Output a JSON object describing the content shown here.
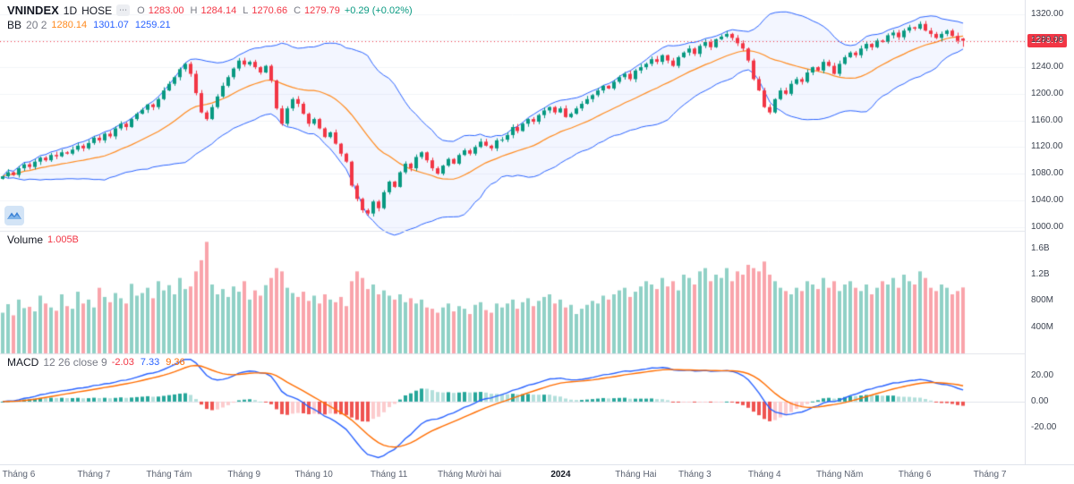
{
  "header": {
    "symbol": "VNINDEX",
    "interval": "1D",
    "exchange": "HOSE",
    "ohlc_items": [
      {
        "k": "O",
        "v": "1283.00"
      },
      {
        "k": "H",
        "v": "1284.14"
      },
      {
        "k": "L",
        "v": "1270.66"
      },
      {
        "k": "C",
        "v": "1279.79"
      }
    ],
    "value_color": "#f23645",
    "change": "+0.29 (+0.02%)",
    "change_color": "#089981"
  },
  "indicators": {
    "bb": {
      "name": "BB",
      "params": "20 2",
      "values": [
        {
          "v": "1280.14",
          "c": "#ff8a1e"
        },
        {
          "v": "1301.07",
          "c": "#2962ff"
        },
        {
          "v": "1259.21",
          "c": "#2962ff"
        }
      ]
    },
    "volume": {
      "name": "Volume",
      "value": "1.005B",
      "c": "#f23645"
    },
    "macd": {
      "name": "MACD",
      "params": "12 26 close 9",
      "values": [
        {
          "v": "-2.03",
          "c": "#f23645"
        },
        {
          "v": "7.33",
          "c": "#2962ff"
        },
        {
          "v": "9.36",
          "c": "#ff6d00"
        }
      ]
    }
  },
  "axes": {
    "price_ticks": [
      {
        "label": "1320.00",
        "v": 1320
      },
      {
        "label": "1280.00",
        "v": 1280
      },
      {
        "label": "1240.00",
        "v": 1240
      },
      {
        "label": "1200.00",
        "v": 1200
      },
      {
        "label": "1160.00",
        "v": 1160
      },
      {
        "label": "1120.00",
        "v": 1120
      },
      {
        "label": "1080.00",
        "v": 1080
      },
      {
        "label": "1040.00",
        "v": 1040
      },
      {
        "label": "1000.00",
        "v": 1000
      }
    ],
    "volume_ticks": [
      {
        "label": "1.6B",
        "v": 1600
      },
      {
        "label": "1.2B",
        "v": 1200
      },
      {
        "label": "800M",
        "v": 800
      },
      {
        "label": "400M",
        "v": 400
      }
    ],
    "macd_ticks": [
      {
        "label": "20.00",
        "v": 20
      },
      {
        "label": "0.00",
        "v": 0
      },
      {
        "label": "-20.00",
        "v": -20
      }
    ],
    "last_price_label": "1279.79"
  },
  "chart_data": {
    "type": "candlestick",
    "title": "VNINDEX 1D HOSE",
    "panes": [
      "price with bollinger(20,2)",
      "volume",
      "macd(12,26,9)"
    ],
    "price_range": [
      994,
      1341
    ],
    "volume_range_m": [
      0,
      1800
    ],
    "last_price": 1279.79,
    "open_first": 1072,
    "last_candle": {
      "o": 1283.0,
      "h": 1284.14,
      "l": 1270.66,
      "c": 1279.79
    },
    "closes": [
      1076,
      1082,
      1078,
      1088,
      1094,
      1090,
      1098,
      1104,
      1100,
      1108,
      1106,
      1112,
      1110,
      1116,
      1122,
      1118,
      1126,
      1134,
      1130,
      1140,
      1136,
      1148,
      1155,
      1150,
      1162,
      1170,
      1176,
      1184,
      1180,
      1192,
      1205,
      1215,
      1225,
      1237,
      1245,
      1230,
      1201,
      1172,
      1162,
      1180,
      1196,
      1212,
      1225,
      1238,
      1250,
      1244,
      1248,
      1240,
      1232,
      1242,
      1220,
      1178,
      1155,
      1178,
      1192,
      1185,
      1170,
      1155,
      1162,
      1148,
      1135,
      1142,
      1125,
      1110,
      1098,
      1062,
      1042,
      1025,
      1020,
      1038,
      1028,
      1052,
      1068,
      1060,
      1082,
      1095,
      1088,
      1105,
      1112,
      1100,
      1088,
      1080,
      1092,
      1102,
      1095,
      1108,
      1115,
      1110,
      1120,
      1128,
      1122,
      1118,
      1130,
      1131,
      1138,
      1150,
      1144,
      1155,
      1162,
      1158,
      1168,
      1175,
      1180,
      1172,
      1178,
      1165,
      1170,
      1178,
      1185,
      1192,
      1198,
      1205,
      1212,
      1208,
      1218,
      1225,
      1230,
      1222,
      1235,
      1240,
      1245,
      1252,
      1248,
      1258,
      1250,
      1242,
      1255,
      1262,
      1268,
      1260,
      1272,
      1278,
      1270,
      1282,
      1286,
      1290,
      1284,
      1276,
      1268,
      1250,
      1222,
      1205,
      1180,
      1172,
      1192,
      1205,
      1200,
      1215,
      1222,
      1218,
      1232,
      1240,
      1235,
      1248,
      1242,
      1230,
      1245,
      1255,
      1262,
      1258,
      1268,
      1275,
      1270,
      1280,
      1278,
      1288,
      1292,
      1285,
      1295,
      1300,
      1298,
      1305,
      1295,
      1290,
      1284,
      1290,
      1295,
      1287,
      1279.5,
      1279.79
    ],
    "volumes_m": [
      620,
      750,
      580,
      820,
      690,
      710,
      640,
      880,
      760,
      700,
      650,
      900,
      720,
      680,
      940,
      760,
      820,
      700,
      1000,
      860,
      780,
      920,
      840,
      760,
      1060,
      880,
      920,
      1000,
      840,
      1100,
      960,
      1040,
      900,
      1150,
      980,
      1020,
      1250,
      1420,
      1700,
      1050,
      900,
      980,
      860,
      1020,
      940,
      1100,
      820,
      960,
      880,
      1040,
      1150,
      1300,
      1250,
      1000,
      920,
      860,
      940,
      800,
      880,
      760,
      900,
      820,
      780,
      860,
      720,
      1100,
      1250,
      1150,
      980,
      1050,
      900,
      960,
      880,
      820,
      900,
      780,
      840,
      760,
      820,
      700,
      680,
      620,
      700,
      760,
      640,
      720,
      680,
      600,
      740,
      780,
      660,
      620,
      760,
      700,
      760,
      820,
      680,
      780,
      840,
      720,
      800,
      860,
      900,
      760,
      820,
      700,
      740,
      600,
      680,
      740,
      800,
      760,
      880,
      820,
      900,
      960,
      1000,
      860,
      940,
      1020,
      1100,
      1050,
      980,
      1150,
      1020,
      1100,
      960,
      1200,
      1150,
      1050,
      1250,
      1300,
      1100,
      1200,
      1150,
      1300,
      1100,
      1250,
      1200,
      1350,
      1300,
      1250,
      1400,
      1200,
      1100,
      1000,
      950,
      900,
      1000,
      950,
      1100,
      1050,
      980,
      1150,
      1000,
      1100,
      950,
      1050,
      1100,
      1000,
      950,
      1050,
      900,
      1000,
      1100,
      1050,
      1150,
      1000,
      1200,
      1100,
      1050,
      1250,
      1150,
      1000,
      950,
      1050,
      1000,
      900,
      950,
      1005
    ],
    "time_labels": [
      {
        "label": "Tháng 6",
        "index": 3
      },
      {
        "label": "Tháng 7",
        "index": 17
      },
      {
        "label": "Tháng Tám",
        "index": 31
      },
      {
        "label": "Tháng 9",
        "index": 45
      },
      {
        "label": "Tháng 10",
        "index": 58
      },
      {
        "label": "Tháng 11",
        "index": 72
      },
      {
        "label": "Tháng Mười hai",
        "index": 87
      },
      {
        "label": "2024",
        "index": 104,
        "bold": true
      },
      {
        "label": "Tháng Hai",
        "index": 118
      },
      {
        "label": "Tháng 3",
        "index": 129
      },
      {
        "label": "Tháng 4",
        "index": 142
      },
      {
        "label": "Tháng Năm",
        "index": 156
      },
      {
        "label": "Tháng 6",
        "index": 170
      },
      {
        "label": "Tháng 7",
        "index": 184
      }
    ],
    "colors": {
      "up": "#089981",
      "down": "#f23645",
      "vol_up": "rgba(8,153,129,0.45)",
      "vol_down": "rgba(242,54,69,0.45)",
      "bb_band": "#2962ff",
      "bb_basis": "#ff8a1e",
      "bb_fill": "rgba(41,98,255,0.055)",
      "macd_line": "#2962ff",
      "macd_signal": "#ff6d00",
      "hist_up_strong": "#26a69a",
      "hist_up_weak": "#b2dfdb",
      "hist_dn_strong": "#ef5350",
      "hist_dn_weak": "#fccbcd",
      "grid": "#f2f4f8",
      "separator": "#e0e3eb",
      "last_price_line": "#f23645"
    }
  }
}
